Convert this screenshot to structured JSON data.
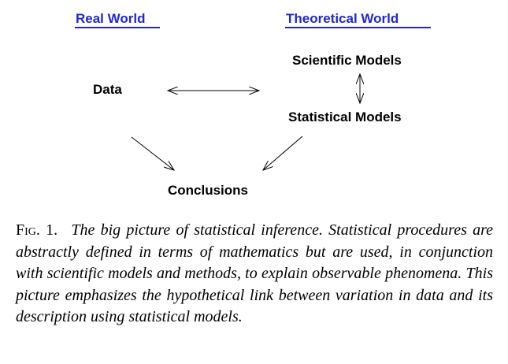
{
  "diagram": {
    "headings": {
      "real_world": "Real World",
      "theoretical_world": "Theoretical World"
    },
    "nodes": {
      "data": "Data",
      "scientific_models": "Scientific Models",
      "statistical_models": "Statistical Models",
      "conclusions": "Conclusions"
    },
    "colors": {
      "heading": "#1f26d6",
      "node": "#000000",
      "arrow": "#000000"
    }
  },
  "caption": {
    "label": "Fig.",
    "number": "1.",
    "text": "The big picture of statistical inference. Statistical procedures are abstractly defined in terms of mathematics but are used, in conjunction with scientific models and methods, to explain observable phenomena. This picture emphasizes the hypothetical link between variation in data and its description using statistical models."
  }
}
